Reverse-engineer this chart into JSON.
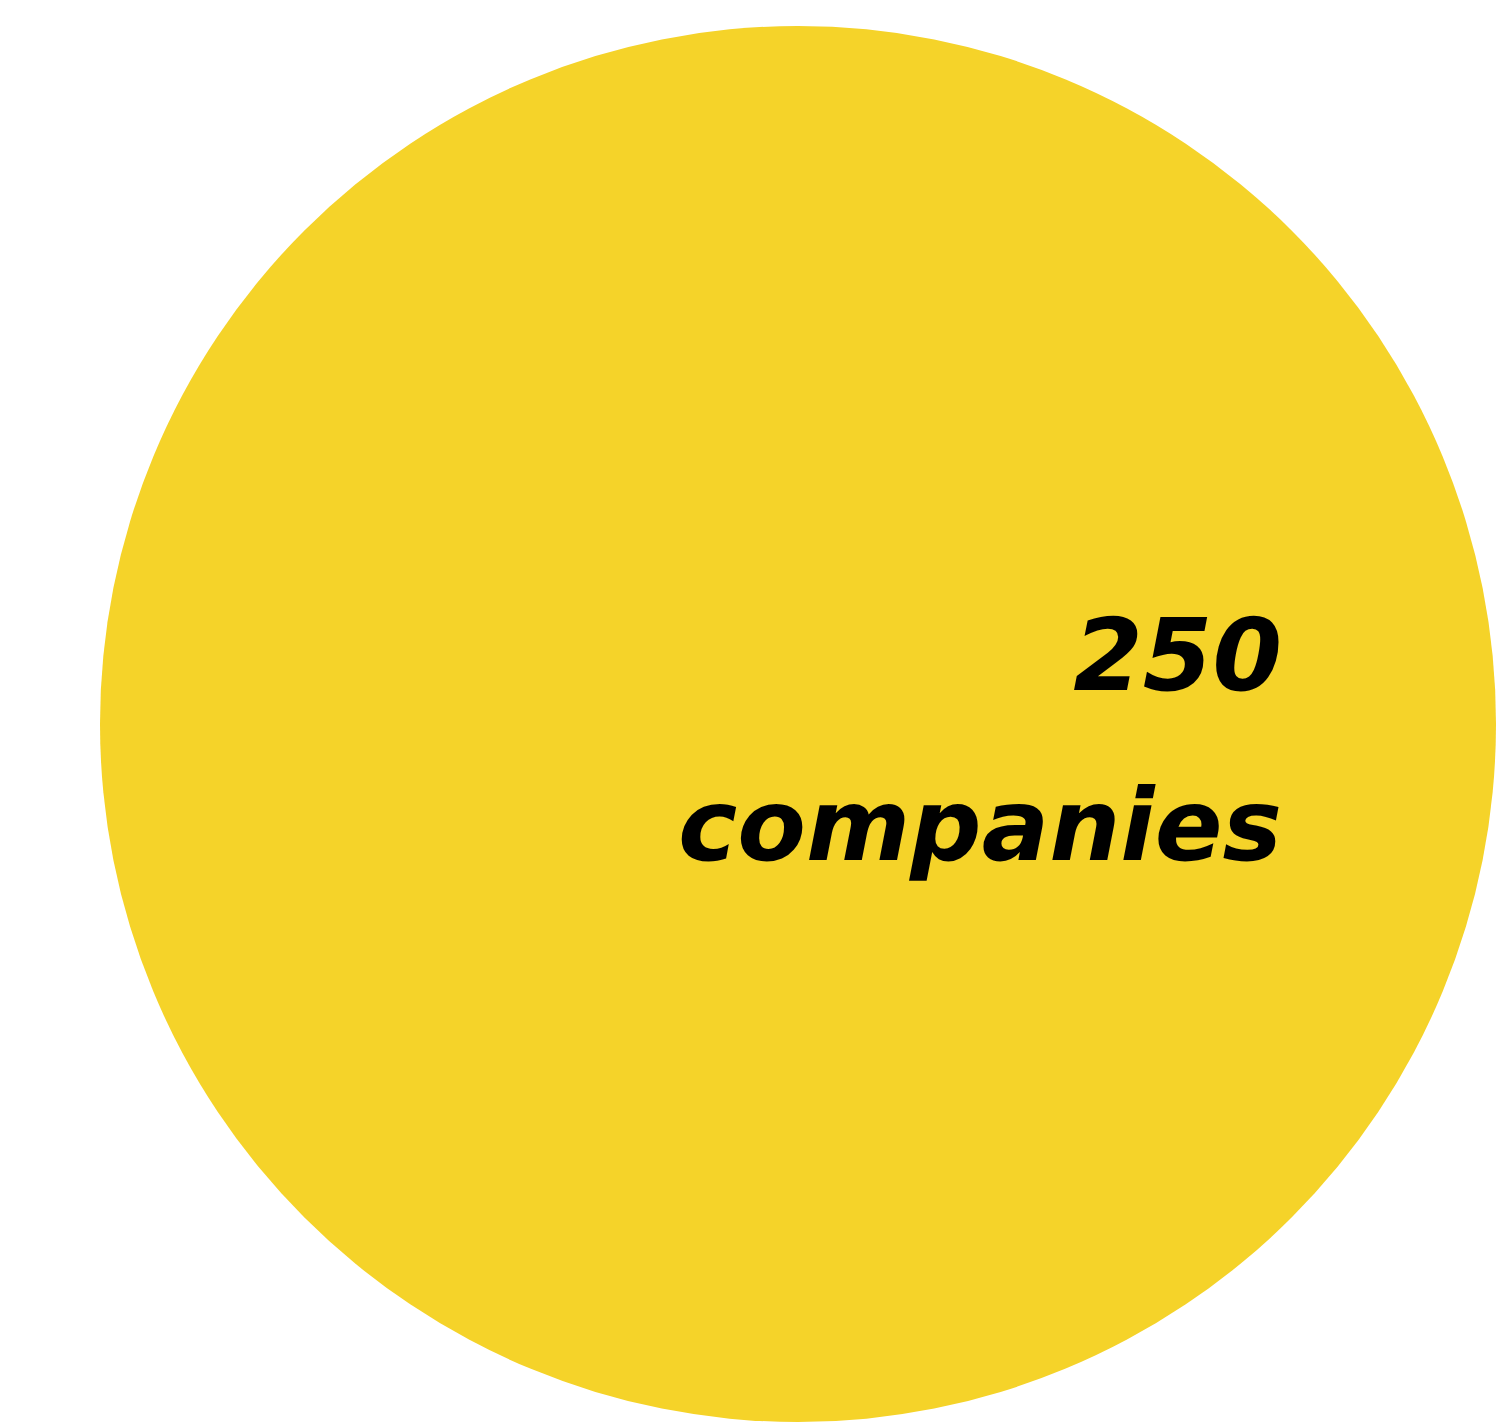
{
  "chart_data": {
    "type": "pie",
    "categories": [
      "companies"
    ],
    "values": [
      250
    ],
    "colors": [
      "#f5d329"
    ],
    "data_labels": true
  }
}
